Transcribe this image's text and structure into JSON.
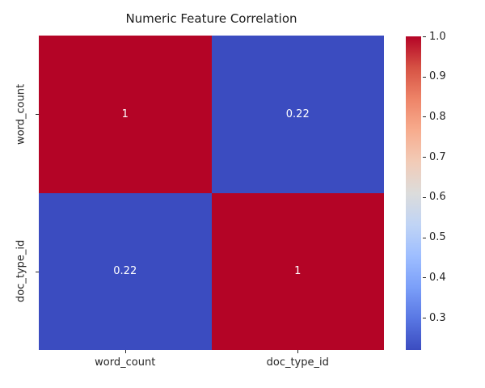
{
  "colors": {
    "background": "#ffffff",
    "text": "#262626",
    "annotation_text": "#ffffff",
    "corr_high": "#b40426",
    "corr_low": "#3b4cc0"
  },
  "chart_data": {
    "type": "heatmap",
    "title": "Numeric Feature Correlation",
    "x_categories": [
      "word_count",
      "doc_type_id"
    ],
    "y_categories": [
      "word_count",
      "doc_type_id"
    ],
    "matrix": [
      [
        1.0,
        0.22
      ],
      [
        0.22,
        1.0
      ]
    ],
    "cell_labels": [
      [
        "1",
        "0.22"
      ],
      [
        "0.22",
        "1"
      ]
    ],
    "cell_colors": [
      [
        "#b40426",
        "#3b4cc0"
      ],
      [
        "#3b4cc0",
        "#b40426"
      ]
    ],
    "colormap": "coolwarm",
    "grid": false,
    "colorbar": {
      "position": "right",
      "min": 0.22,
      "max": 1.0,
      "ticks": [
        {
          "label": "1.0",
          "value": 1.0
        },
        {
          "label": "0.9",
          "value": 0.9
        },
        {
          "label": "0.8",
          "value": 0.8
        },
        {
          "label": "0.7",
          "value": 0.7
        },
        {
          "label": "0.6",
          "value": 0.6
        },
        {
          "label": "0.5",
          "value": 0.5
        },
        {
          "label": "0.4",
          "value": 0.4
        },
        {
          "label": "0.3",
          "value": 0.3
        }
      ],
      "gradient_bottom_to_top": [
        "#3b4cc0",
        "#5977e3",
        "#7b9ff9",
        "#9ebeff",
        "#c0d4f5",
        "#dcdcdb",
        "#f2cbb7",
        "#f7ac8e",
        "#ee8468",
        "#d65244",
        "#b40426"
      ]
    }
  }
}
